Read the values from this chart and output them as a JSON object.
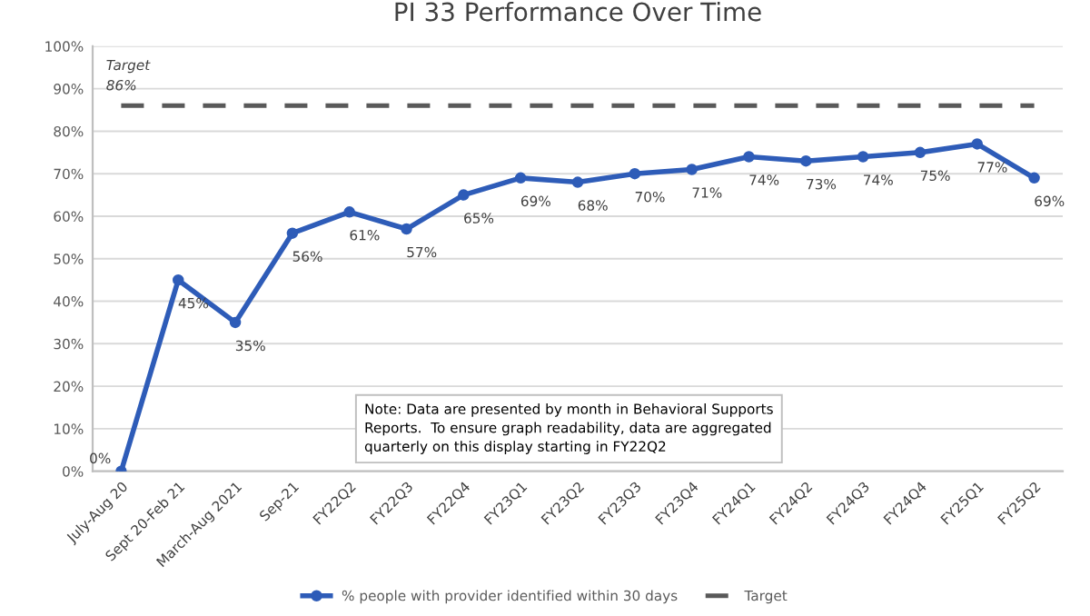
{
  "chart_data": {
    "type": "line",
    "title": "PI 33 Performance Over Time",
    "categories": [
      "July-Aug 20",
      "Sept 20-Feb 21",
      "March-Aug 2021",
      "Sep-21",
      "FY22Q2",
      "FY22Q3",
      "FY22Q4",
      "FY23Q1",
      "FY23Q2",
      "FY23Q3",
      "FY23Q4",
      "FY24Q1",
      "FY24Q2",
      "FY24Q3",
      "FY24Q4",
      "FY25Q1",
      "FY25Q2"
    ],
    "series": [
      {
        "name": "% people with provider identified within 30 days",
        "color": "#2e5cb8",
        "marker": "circle",
        "line_style": "solid",
        "values": [
          0,
          45,
          35,
          56,
          61,
          57,
          65,
          69,
          68,
          70,
          71,
          74,
          73,
          74,
          75,
          77,
          69
        ],
        "value_labels": [
          "0%",
          "45%",
          "35%",
          "56%",
          "61%",
          "57%",
          "65%",
          "69%",
          "68%",
          "70%",
          "71%",
          "74%",
          "73%",
          "74%",
          "75%",
          "77%",
          "69%"
        ]
      },
      {
        "name": "Target",
        "color": "#595959",
        "marker": "none",
        "line_style": "dashed",
        "values": [
          86,
          86,
          86,
          86,
          86,
          86,
          86,
          86,
          86,
          86,
          86,
          86,
          86,
          86,
          86,
          86,
          86
        ]
      }
    ],
    "ylim": [
      0,
      100
    ],
    "yticks": [
      {
        "value": 0,
        "label": "0%"
      },
      {
        "value": 10,
        "label": "10%"
      },
      {
        "value": 20,
        "label": "20%"
      },
      {
        "value": 30,
        "label": "30%"
      },
      {
        "value": 40,
        "label": "40%"
      },
      {
        "value": 50,
        "label": "50%"
      },
      {
        "value": 60,
        "label": "60%"
      },
      {
        "value": 70,
        "label": "70%"
      },
      {
        "value": 80,
        "label": "80%"
      },
      {
        "value": 90,
        "label": "90%"
      },
      {
        "value": 100,
        "label": "100%"
      }
    ],
    "annotations": [
      {
        "text": "Target",
        "x": "July-Aug 20",
        "y": 86
      },
      {
        "text": "86%",
        "x": "July-Aug 20",
        "y": 86
      },
      "Note: Data are presented by month in Behavioral Supports Reports.  To ensure graph readability, data are aggregated quarterly on this display starting in FY22Q2"
    ],
    "grid": "y",
    "legend": "bottom"
  }
}
